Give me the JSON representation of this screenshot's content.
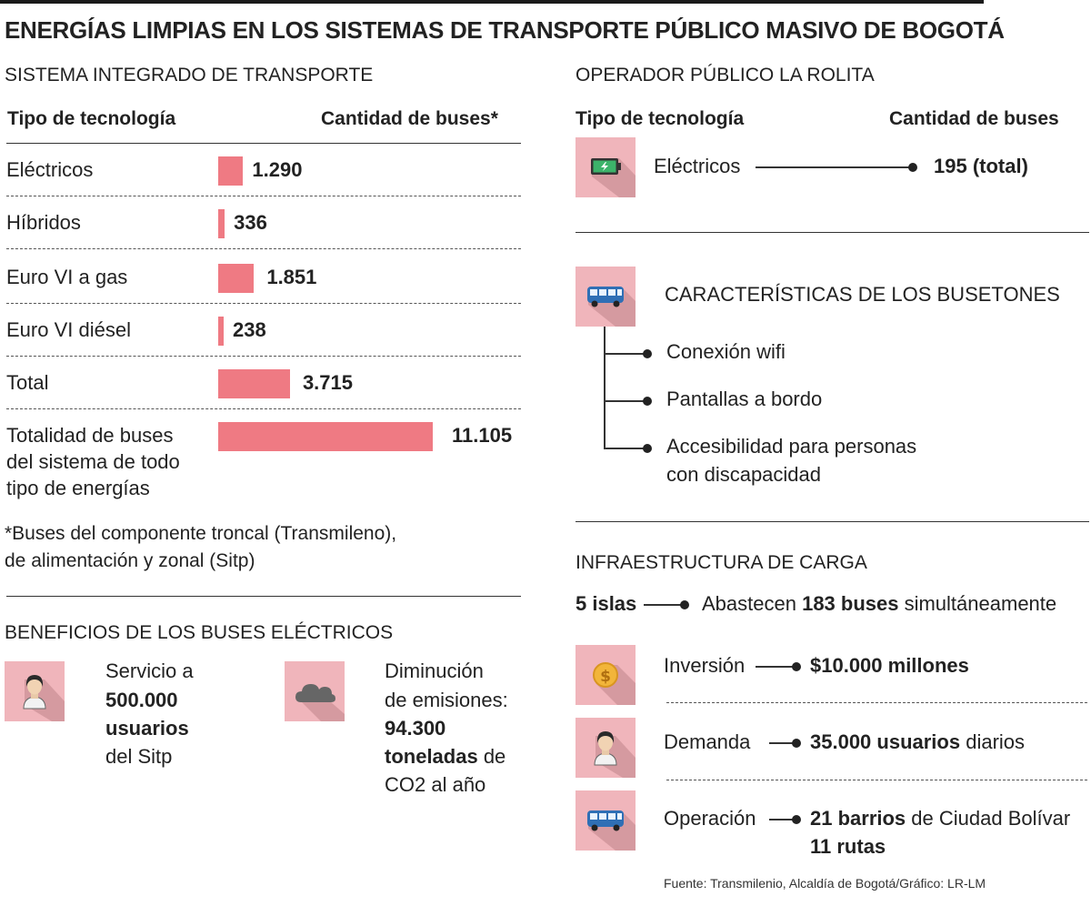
{
  "title": "ENERGÍAS LIMPIAS EN LOS SISTEMAS DE TRANSPORTE PÚBLICO MASIVO DE BOGOTÁ",
  "left": {
    "section_title": "SISTEMA INTEGRADO DE TRANSPORTE",
    "col_tech": "Tipo de tecnología",
    "col_count": "Cantidad de buses*",
    "footnote_1": "*Buses del componente troncal (Transmileno),",
    "footnote_2": "de alimentación y zonal (Sitp)"
  },
  "chart_data": {
    "type": "bar",
    "orientation": "horizontal",
    "title": "SISTEMA INTEGRADO DE TRANSPORTE",
    "xlabel": "Cantidad de buses*",
    "ylabel": "Tipo de tecnología",
    "categories": [
      "Eléctricos",
      "Híbridos",
      "Euro VI a gas",
      "Euro VI diésel",
      "Total",
      "Totalidad de buses del sistema de todo tipo de energías"
    ],
    "category_lines": [
      [
        "Eléctricos"
      ],
      [
        "Híbridos"
      ],
      [
        "Euro VI a gas"
      ],
      [
        "Euro VI diésel"
      ],
      [
        "Total"
      ],
      [
        "Totalidad de buses",
        "del sistema de todo",
        "tipo de energías"
      ]
    ],
    "values": [
      1290,
      336,
      1851,
      238,
      3715,
      11105
    ],
    "value_labels": [
      "1.290",
      "336",
      "1.851",
      "238",
      "3.715",
      "11.105"
    ],
    "xlim": [
      0,
      11105
    ],
    "color": "#ef7a83"
  },
  "benefits": {
    "title": "BENEFICIOS DE LOS BUSES ELÉCTRICOS",
    "b1_l1": "Servicio a",
    "b1_l2": "500.000",
    "b1_l3": "usuarios",
    "b1_l4": "del Sitp",
    "b2_l1": "Diminución",
    "b2_l2": "de emisiones:",
    "b2_l3": "94.300",
    "b2_l4a": "toneladas",
    "b2_l4b": " de",
    "b2_l5": "CO2 al año"
  },
  "rolita": {
    "section_title": "OPERADOR PÚBLICO LA ROLITA",
    "col_tech": "Tipo de tecnología",
    "col_count": "Cantidad de buses",
    "tech": "Eléctricos",
    "value": "195 (total)"
  },
  "busetones": {
    "title": "CARACTERÍSTICAS DE LOS BUSETONES",
    "items": [
      "Conexión wifi",
      "Pantallas a bordo",
      "Accesibilidad para personas",
      "con discapacidad"
    ]
  },
  "carga": {
    "section_title": "INFRAESTRUCTURA DE CARGA",
    "islas": "5 islas",
    "abastecen_a": "Abastecen ",
    "abastecen_b": "183 buses",
    "abastecen_c": " simultáneamente",
    "inversion_label": "Inversión",
    "inversion_value": "$10.000 millones",
    "demanda_label": "Demanda",
    "demanda_value_b": "35.000 usuarios",
    "demanda_value_c": " diarios",
    "operacion_label": "Operación",
    "operacion_b": "21 barrios",
    "operacion_c": " de Ciudad Bolívar",
    "operacion_rutas": "11 rutas"
  },
  "source": "Fuente: Transmilenio, Alcaldía de Bogotá/Gráfico: LR-LM",
  "icons": [
    "battery-icon",
    "bus-icon",
    "person-icon",
    "cloud-icon",
    "coin-icon"
  ]
}
